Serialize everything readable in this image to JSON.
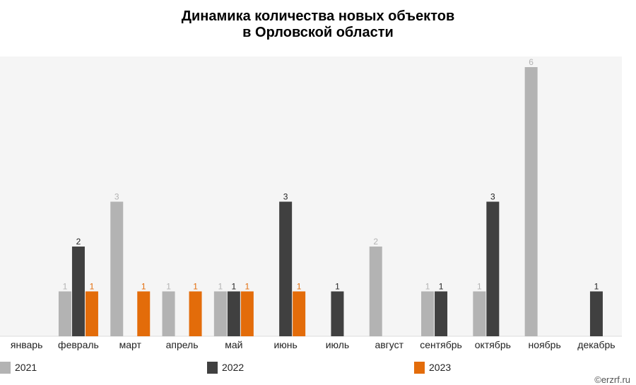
{
  "chart_data": {
    "type": "bar",
    "title_line1": "Динамика количества новых объектов",
    "title_line2": "в Орловской области",
    "categories": [
      "январь",
      "февраль",
      "март",
      "апрель",
      "май",
      "июнь",
      "июль",
      "август",
      "сентябрь",
      "октябрь",
      "ноябрь",
      "декабрь"
    ],
    "series": [
      {
        "name": "2021",
        "color": "#b3b3b3",
        "values": [
          0,
          1,
          3,
          1,
          1,
          0,
          0,
          2,
          1,
          1,
          6,
          0
        ]
      },
      {
        "name": "2022",
        "color": "#404040",
        "values": [
          0,
          2,
          0,
          0,
          1,
          3,
          1,
          0,
          1,
          3,
          0,
          1
        ]
      },
      {
        "name": "2023",
        "color": "#e36c0a",
        "values": [
          0,
          1,
          1,
          1,
          1,
          1,
          0,
          0,
          0,
          0,
          0,
          0
        ]
      }
    ],
    "ylim": [
      0,
      6
    ],
    "grid": false,
    "legend": "bottom"
  },
  "copyright": "©erzrf.ru"
}
